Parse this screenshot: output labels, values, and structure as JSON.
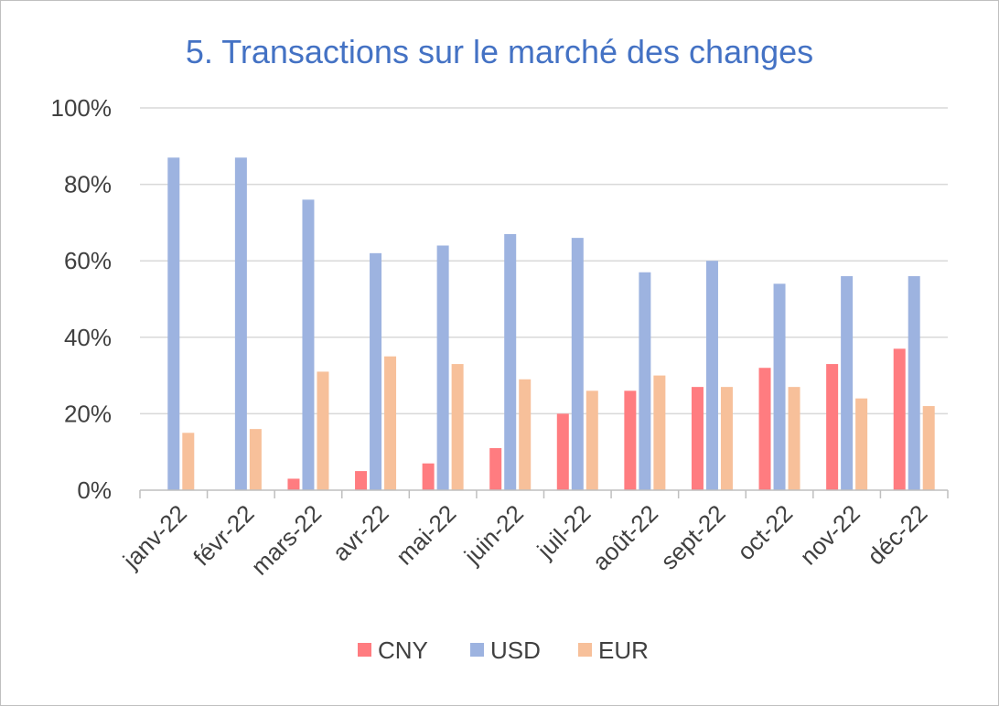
{
  "chart_data": {
    "type": "bar",
    "title": "5. Transactions sur le marché des changes",
    "xlabel": "",
    "ylabel": "",
    "categories": [
      "janv-22",
      "févr-22",
      "mars-22",
      "avr-22",
      "mai-22",
      "juin-22",
      "juil-22",
      "août-22",
      "sept-22",
      "oct-22",
      "nov-22",
      "déc-22"
    ],
    "series": [
      {
        "name": "CNY",
        "color": "#ff7c80",
        "values": [
          0,
          0,
          3,
          5,
          7,
          11,
          20,
          26,
          27,
          32,
          33,
          37
        ]
      },
      {
        "name": "USD",
        "color": "#9db3e0",
        "values": [
          87,
          87,
          76,
          62,
          64,
          67,
          66,
          57,
          60,
          54,
          56,
          56
        ]
      },
      {
        "name": "EUR",
        "color": "#f7c09a",
        "values": [
          15,
          16,
          31,
          35,
          33,
          29,
          26,
          30,
          27,
          27,
          24,
          22
        ]
      }
    ],
    "ylim": [
      0,
      100
    ],
    "yticks": [
      "0%",
      "20%",
      "40%",
      "60%",
      "80%",
      "100%"
    ],
    "grid": true,
    "legend": "bottom"
  }
}
